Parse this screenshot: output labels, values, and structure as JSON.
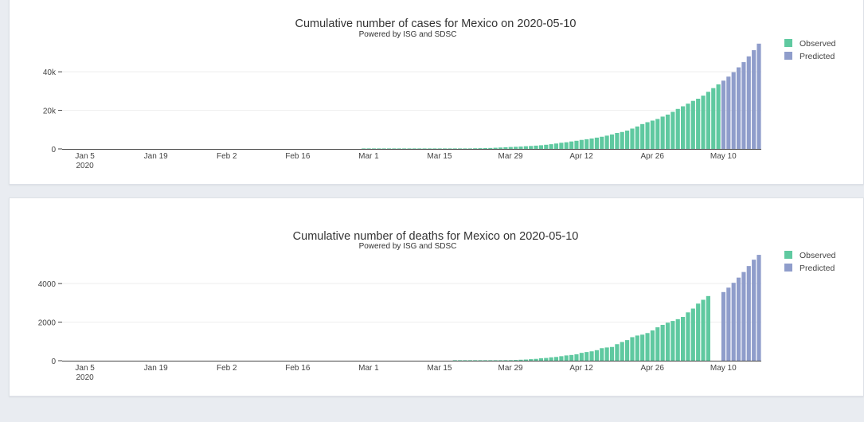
{
  "charts": {
    "cases": {
      "title": "Cumulative number of cases for Mexico on 2020-05-10",
      "subtitle": "Powered by ISG and SDSC"
    },
    "deaths": {
      "title": "Cumulative number of deaths for Mexico on 2020-05-10",
      "subtitle": "Powered by ISG and SDSC"
    }
  },
  "colors": {
    "observed": "#5fc9a0",
    "predicted": "#8f9dcb"
  },
  "chart_data": [
    {
      "type": "bar",
      "title": "Cumulative number of cases for Mexico on 2020-05-10",
      "subtitle": "Powered by ISG and SDSC",
      "xlabel": "",
      "ylabel": "",
      "x_start_date": "2020-01-01",
      "x_range_days": [
        0,
        138
      ],
      "ylim": [
        0,
        57000
      ],
      "yticks": [
        0,
        20000,
        40000
      ],
      "ytick_labels": [
        "0",
        "20k",
        "40k"
      ],
      "xtick_labels": [
        "Jan 5\n2020",
        "Jan 19",
        "Feb 2",
        "Feb 16",
        "Mar 1",
        "Mar 15",
        "Mar 29",
        "Apr 12",
        "Apr 26",
        "May 10"
      ],
      "xtick_days": [
        4,
        18,
        32,
        46,
        60,
        74,
        88,
        102,
        116,
        130
      ],
      "legend": [
        "Observed",
        "Predicted"
      ],
      "legend_position": "top-right",
      "series": [
        {
          "name": "Observed",
          "start_day": 59,
          "values": [
            1,
            4,
            5,
            5,
            5,
            6,
            7,
            7,
            7,
            7,
            8,
            12,
            15,
            26,
            41,
            53,
            82,
            93,
            118,
            164,
            203,
            251,
            316,
            367,
            405,
            475,
            585,
            717,
            848,
            993,
            1094,
            1215,
            1378,
            1510,
            1688,
            1890,
            2143,
            2439,
            2785,
            3181,
            3441,
            3844,
            4219,
            4661,
            5014,
            5399,
            5847,
            6297,
            6875,
            7497,
            8261,
            8772,
            9501,
            10544,
            11633,
            12872,
            13842,
            14677,
            15529,
            16752,
            17799,
            19224,
            20739,
            22088,
            23471,
            24905,
            26025,
            27634,
            29616,
            31522,
            33460
          ]
        },
        {
          "name": "Predicted",
          "start_day": 130,
          "values": [
            35400,
            37500,
            39800,
            42300,
            45000,
            48000,
            51200,
            54600
          ]
        }
      ]
    },
    {
      "type": "bar",
      "title": "Cumulative number of deaths for Mexico on 2020-05-10",
      "subtitle": "Powered by ISG and SDSC",
      "xlabel": "",
      "ylabel": "",
      "x_start_date": "2020-01-01",
      "x_range_days": [
        0,
        138
      ],
      "ylim": [
        0,
        5700
      ],
      "yticks": [
        0,
        2000,
        4000
      ],
      "ytick_labels": [
        "0",
        "2000",
        "4000"
      ],
      "xtick_labels": [
        "Jan 5\n2020",
        "Jan 19",
        "Feb 2",
        "Feb 16",
        "Mar 1",
        "Mar 15",
        "Mar 29",
        "Apr 12",
        "Apr 26",
        "May 10"
      ],
      "xtick_days": [
        4,
        18,
        32,
        46,
        60,
        74,
        88,
        102,
        116,
        130
      ],
      "legend": [
        "Observed",
        "Predicted"
      ],
      "legend_position": "top-right",
      "series": [
        {
          "name": "Observed",
          "start_day": 77,
          "values": [
            1,
            2,
            2,
            4,
            5,
            6,
            8,
            12,
            16,
            20,
            28,
            29,
            37,
            50,
            60,
            79,
            94,
            125,
            141,
            174,
            194,
            233,
            273,
            296,
            332,
            406,
            449,
            486,
            546,
            650,
            686,
            712,
            857,
            970,
            1069,
            1221,
            1305,
            1351,
            1434,
            1569,
            1732,
            1859,
            1972,
            2061,
            2154,
            2271,
            2507,
            2704,
            2961,
            3160,
            3353
          ]
        },
        {
          "name": "Predicted",
          "start_day": 130,
          "values": [
            3560,
            3790,
            4040,
            4310,
            4600,
            4910,
            5240,
            5490
          ]
        }
      ]
    }
  ]
}
